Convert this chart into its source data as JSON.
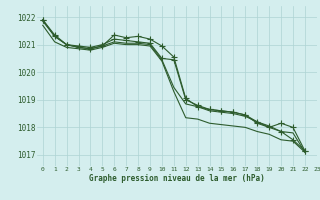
{
  "title": "Graphe pression niveau de la mer (hPa)",
  "background_color": "#d4eeee",
  "grid_color": "#aed4d4",
  "line_color": "#2d5c2d",
  "xlim": [
    -0.5,
    23
  ],
  "ylim": [
    1016.6,
    1022.4
  ],
  "yticks": [
    1017,
    1018,
    1019,
    1020,
    1021,
    1022
  ],
  "xticks": [
    0,
    1,
    2,
    3,
    4,
    5,
    6,
    7,
    8,
    9,
    10,
    11,
    12,
    13,
    14,
    15,
    16,
    17,
    18,
    19,
    20,
    21,
    22,
    23
  ],
  "series": [
    {
      "x": [
        0,
        1,
        2,
        3,
        4,
        5,
        6,
        7,
        8,
        9,
        10,
        11,
        12,
        13,
        14,
        15,
        16,
        17,
        18,
        19,
        20,
        21,
        22
      ],
      "y": [
        1021.9,
        1021.3,
        1021.0,
        1020.95,
        1020.9,
        1021.0,
        1021.2,
        1021.15,
        1021.1,
        1021.05,
        1020.5,
        1020.45,
        1019.0,
        1018.8,
        1018.65,
        1018.6,
        1018.55,
        1018.45,
        1018.2,
        1018.05,
        1017.85,
        1017.55,
        1017.15
      ],
      "marker": true
    },
    {
      "x": [
        0,
        1,
        2,
        3,
        4,
        5,
        6,
        7,
        8,
        9,
        10,
        11,
        12,
        13,
        14,
        15,
        16,
        17,
        18,
        19,
        20,
        21,
        22
      ],
      "y": [
        1021.9,
        1021.35,
        1021.0,
        1020.9,
        1020.85,
        1020.95,
        1021.35,
        1021.25,
        1021.3,
        1021.2,
        1020.95,
        1020.55,
        1019.05,
        1018.75,
        1018.65,
        1018.6,
        1018.55,
        1018.45,
        1018.15,
        1018.0,
        1018.15,
        1018.0,
        1017.15
      ],
      "marker": true
    },
    {
      "x": [
        0,
        1,
        2,
        3,
        4,
        5,
        6,
        7,
        8,
        9,
        10,
        11,
        12,
        13,
        14,
        15,
        16,
        17,
        18,
        19,
        20,
        21,
        22
      ],
      "y": [
        1021.85,
        1021.3,
        1021.0,
        1020.9,
        1020.85,
        1020.95,
        1021.1,
        1021.05,
        1021.05,
        1021.0,
        1020.45,
        1019.45,
        1018.85,
        1018.75,
        1018.6,
        1018.55,
        1018.5,
        1018.4,
        1018.2,
        1018.0,
        1017.85,
        1017.8,
        1017.1
      ],
      "marker": false
    },
    {
      "x": [
        0,
        1,
        2,
        3,
        4,
        5,
        6,
        7,
        8,
        9,
        10,
        11,
        12,
        13,
        14,
        15,
        16,
        17,
        18,
        19,
        20,
        21,
        22
      ],
      "y": [
        1021.7,
        1021.1,
        1020.9,
        1020.85,
        1020.8,
        1020.9,
        1021.05,
        1021.0,
        1021.0,
        1020.95,
        1020.4,
        1019.3,
        1018.35,
        1018.3,
        1018.15,
        1018.1,
        1018.05,
        1018.0,
        1017.85,
        1017.75,
        1017.55,
        1017.5,
        1017.1
      ],
      "marker": false
    }
  ],
  "marker_symbol": "+",
  "marker_size": 4,
  "linewidth": 0.8,
  "figsize": [
    3.2,
    2.0
  ],
  "dpi": 100
}
